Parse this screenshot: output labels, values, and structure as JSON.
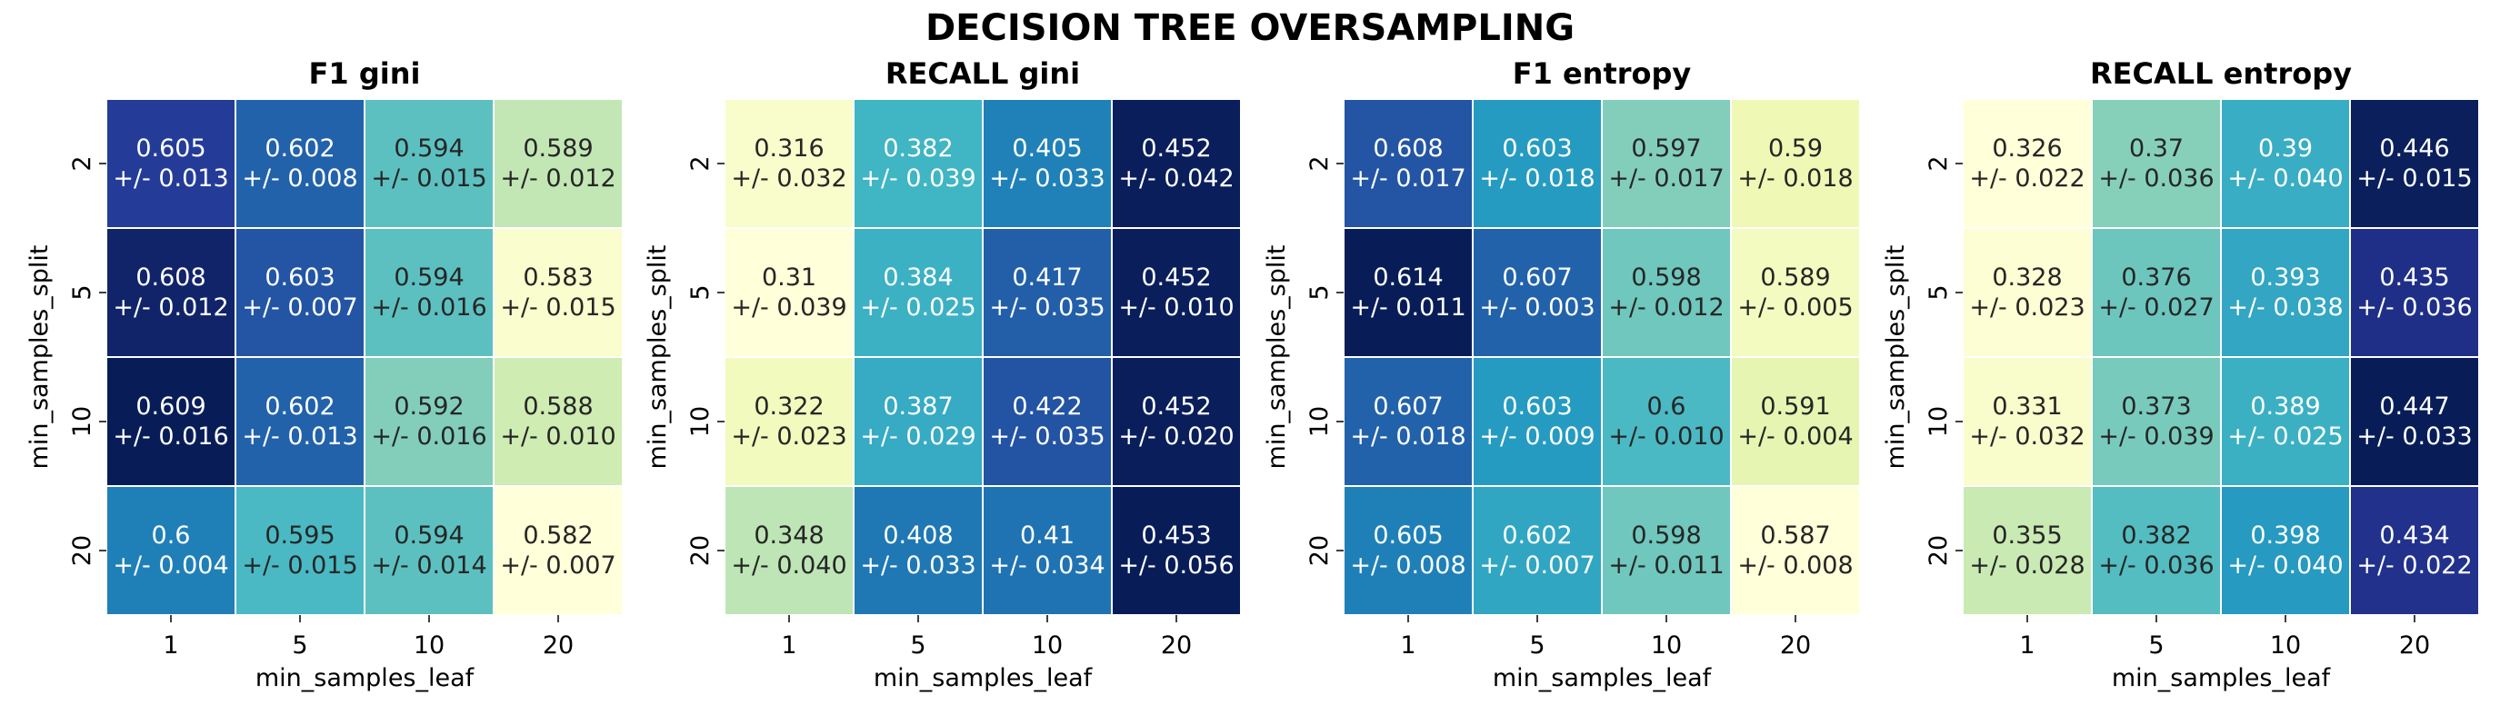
{
  "figure": {
    "title": "DECISION TREE OVERSAMPLING"
  },
  "chart_data": [
    {
      "type": "heatmap",
      "title": "F1   gini",
      "xlabel": "min_samples_leaf",
      "ylabel": "min_samples_split",
      "x_categories": [
        "1",
        "5",
        "10",
        "20"
      ],
      "y_categories": [
        "2",
        "5",
        "10",
        "20"
      ],
      "colormap": "YlGnBu",
      "values": [
        [
          0.605,
          0.602,
          0.594,
          0.589
        ],
        [
          0.608,
          0.603,
          0.594,
          0.583
        ],
        [
          0.609,
          0.602,
          0.592,
          0.588
        ],
        [
          0.6,
          0.595,
          0.594,
          0.582
        ]
      ],
      "labels": [
        [
          "0.605\n+/- 0.013",
          "0.602\n+/- 0.008",
          "0.594\n+/- 0.015",
          "0.589\n+/- 0.012"
        ],
        [
          "0.608\n+/- 0.012",
          "0.603\n+/- 0.007",
          "0.594\n+/- 0.016",
          "0.583\n+/- 0.015"
        ],
        [
          "0.609\n+/- 0.016",
          "0.602\n+/- 0.013",
          "0.592\n+/- 0.016",
          "0.588\n+/- 0.010"
        ],
        [
          "0.6\n+/- 0.004",
          "0.595\n+/- 0.015",
          "0.594\n+/- 0.014",
          "0.582\n+/- 0.007"
        ]
      ]
    },
    {
      "type": "heatmap",
      "title": "RECALL   gini",
      "xlabel": "min_samples_leaf",
      "ylabel": "min_samples_split",
      "x_categories": [
        "1",
        "5",
        "10",
        "20"
      ],
      "y_categories": [
        "2",
        "5",
        "10",
        "20"
      ],
      "colormap": "YlGnBu",
      "values": [
        [
          0.316,
          0.382,
          0.405,
          0.452
        ],
        [
          0.31,
          0.384,
          0.417,
          0.452
        ],
        [
          0.322,
          0.387,
          0.422,
          0.452
        ],
        [
          0.348,
          0.408,
          0.41,
          0.453
        ]
      ],
      "labels": [
        [
          "0.316\n+/- 0.032",
          "0.382\n+/- 0.039",
          "0.405\n+/- 0.033",
          "0.452\n+/- 0.042"
        ],
        [
          "0.31\n+/- 0.039",
          "0.384\n+/- 0.025",
          "0.417\n+/- 0.035",
          "0.452\n+/- 0.010"
        ],
        [
          "0.322\n+/- 0.023",
          "0.387\n+/- 0.029",
          "0.422\n+/- 0.035",
          "0.452\n+/- 0.020"
        ],
        [
          "0.348\n+/- 0.040",
          "0.408\n+/- 0.033",
          "0.41\n+/- 0.034",
          "0.453\n+/- 0.056"
        ]
      ]
    },
    {
      "type": "heatmap",
      "title": "F1   entropy",
      "xlabel": "min_samples_leaf",
      "ylabel": "min_samples_split",
      "x_categories": [
        "1",
        "5",
        "10",
        "20"
      ],
      "y_categories": [
        "2",
        "5",
        "10",
        "20"
      ],
      "colormap": "YlGnBu",
      "values": [
        [
          0.608,
          0.603,
          0.597,
          0.59
        ],
        [
          0.614,
          0.607,
          0.598,
          0.589
        ],
        [
          0.607,
          0.603,
          0.6,
          0.591
        ],
        [
          0.605,
          0.602,
          0.598,
          0.587
        ]
      ],
      "labels": [
        [
          "0.608\n+/- 0.017",
          "0.603\n+/- 0.018",
          "0.597\n+/- 0.017",
          "0.59\n+/- 0.018"
        ],
        [
          "0.614\n+/- 0.011",
          "0.607\n+/- 0.003",
          "0.598\n+/- 0.012",
          "0.589\n+/- 0.005"
        ],
        [
          "0.607\n+/- 0.018",
          "0.603\n+/- 0.009",
          "0.6\n+/- 0.010",
          "0.591\n+/- 0.004"
        ],
        [
          "0.605\n+/- 0.008",
          "0.602\n+/- 0.007",
          "0.598\n+/- 0.011",
          "0.587\n+/- 0.008"
        ]
      ]
    },
    {
      "type": "heatmap",
      "title": "RECALL   entropy",
      "xlabel": "min_samples_leaf",
      "ylabel": "min_samples_split",
      "x_categories": [
        "1",
        "5",
        "10",
        "20"
      ],
      "y_categories": [
        "2",
        "5",
        "10",
        "20"
      ],
      "colormap": "YlGnBu",
      "values": [
        [
          0.326,
          0.37,
          0.39,
          0.446
        ],
        [
          0.328,
          0.376,
          0.393,
          0.435
        ],
        [
          0.331,
          0.373,
          0.389,
          0.447
        ],
        [
          0.355,
          0.382,
          0.398,
          0.434
        ]
      ],
      "labels": [
        [
          "0.326\n+/- 0.022",
          "0.37\n+/- 0.036",
          "0.39\n+/- 0.040",
          "0.446\n+/- 0.015"
        ],
        [
          "0.328\n+/- 0.023",
          "0.376\n+/- 0.027",
          "0.393\n+/- 0.038",
          "0.435\n+/- 0.036"
        ],
        [
          "0.331\n+/- 0.032",
          "0.373\n+/- 0.039",
          "0.389\n+/- 0.025",
          "0.447\n+/- 0.033"
        ],
        [
          "0.355\n+/- 0.028",
          "0.382\n+/- 0.036",
          "0.398\n+/- 0.040",
          "0.434\n+/- 0.022"
        ]
      ]
    }
  ]
}
